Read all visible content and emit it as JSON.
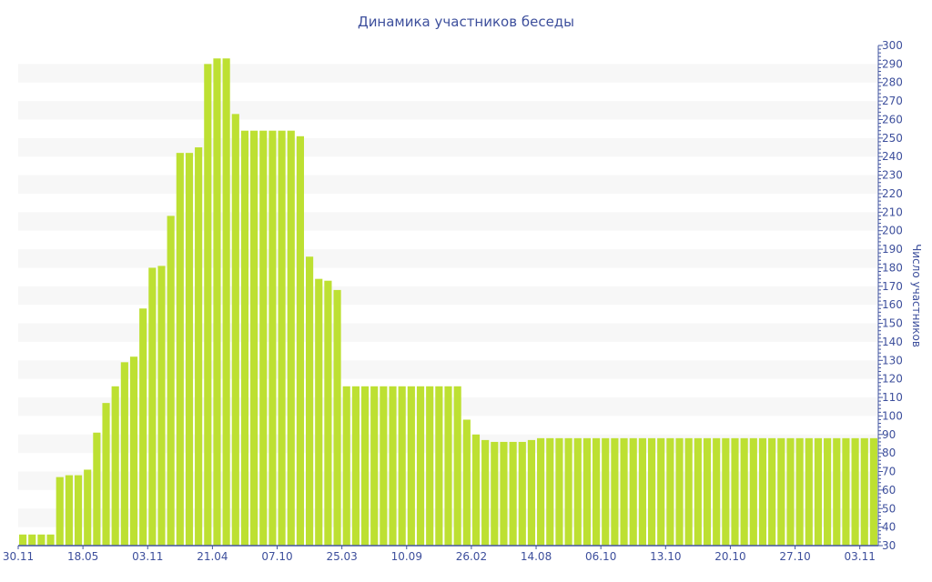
{
  "chart_data": {
    "type": "bar",
    "title": "Динамика участников беседы",
    "xlabel": "",
    "ylabel": "Число участников",
    "ylim": [
      30,
      300
    ],
    "ytick_step": 10,
    "grid": "alternating horizontal bands",
    "y_axis_side": "right",
    "tick_labels": [
      "30.11",
      "18.05",
      "03.11",
      "21.04",
      "07.10",
      "25.03",
      "10.09",
      "26.02",
      "14.08",
      "06.10",
      "13.10",
      "20.10",
      "27.10",
      "03.11"
    ],
    "tick_every_n_bars": 7,
    "values": [
      36,
      36,
      36,
      36,
      67,
      68,
      68,
      71,
      91,
      107,
      116,
      129,
      132,
      158,
      180,
      181,
      208,
      242,
      242,
      245,
      290,
      293,
      293,
      263,
      254,
      254,
      254,
      254,
      254,
      254,
      251,
      186,
      174,
      173,
      168,
      116,
      116,
      116,
      116,
      116,
      116,
      116,
      116,
      116,
      116,
      116,
      116,
      116,
      98,
      90,
      87,
      86,
      86,
      86,
      86,
      87,
      88,
      88,
      88,
      88,
      88,
      88,
      88,
      88,
      88,
      88,
      88,
      88,
      88,
      88,
      88,
      88,
      88,
      88,
      88,
      88,
      88,
      88,
      88,
      88,
      88,
      88,
      88,
      88,
      88,
      88,
      88,
      88,
      88,
      88,
      88,
      88,
      88
    ],
    "colors": {
      "bar": "#bde032",
      "axis": "#4254a0",
      "text": "#3d4f9c",
      "band": "#f7f7f7"
    }
  }
}
